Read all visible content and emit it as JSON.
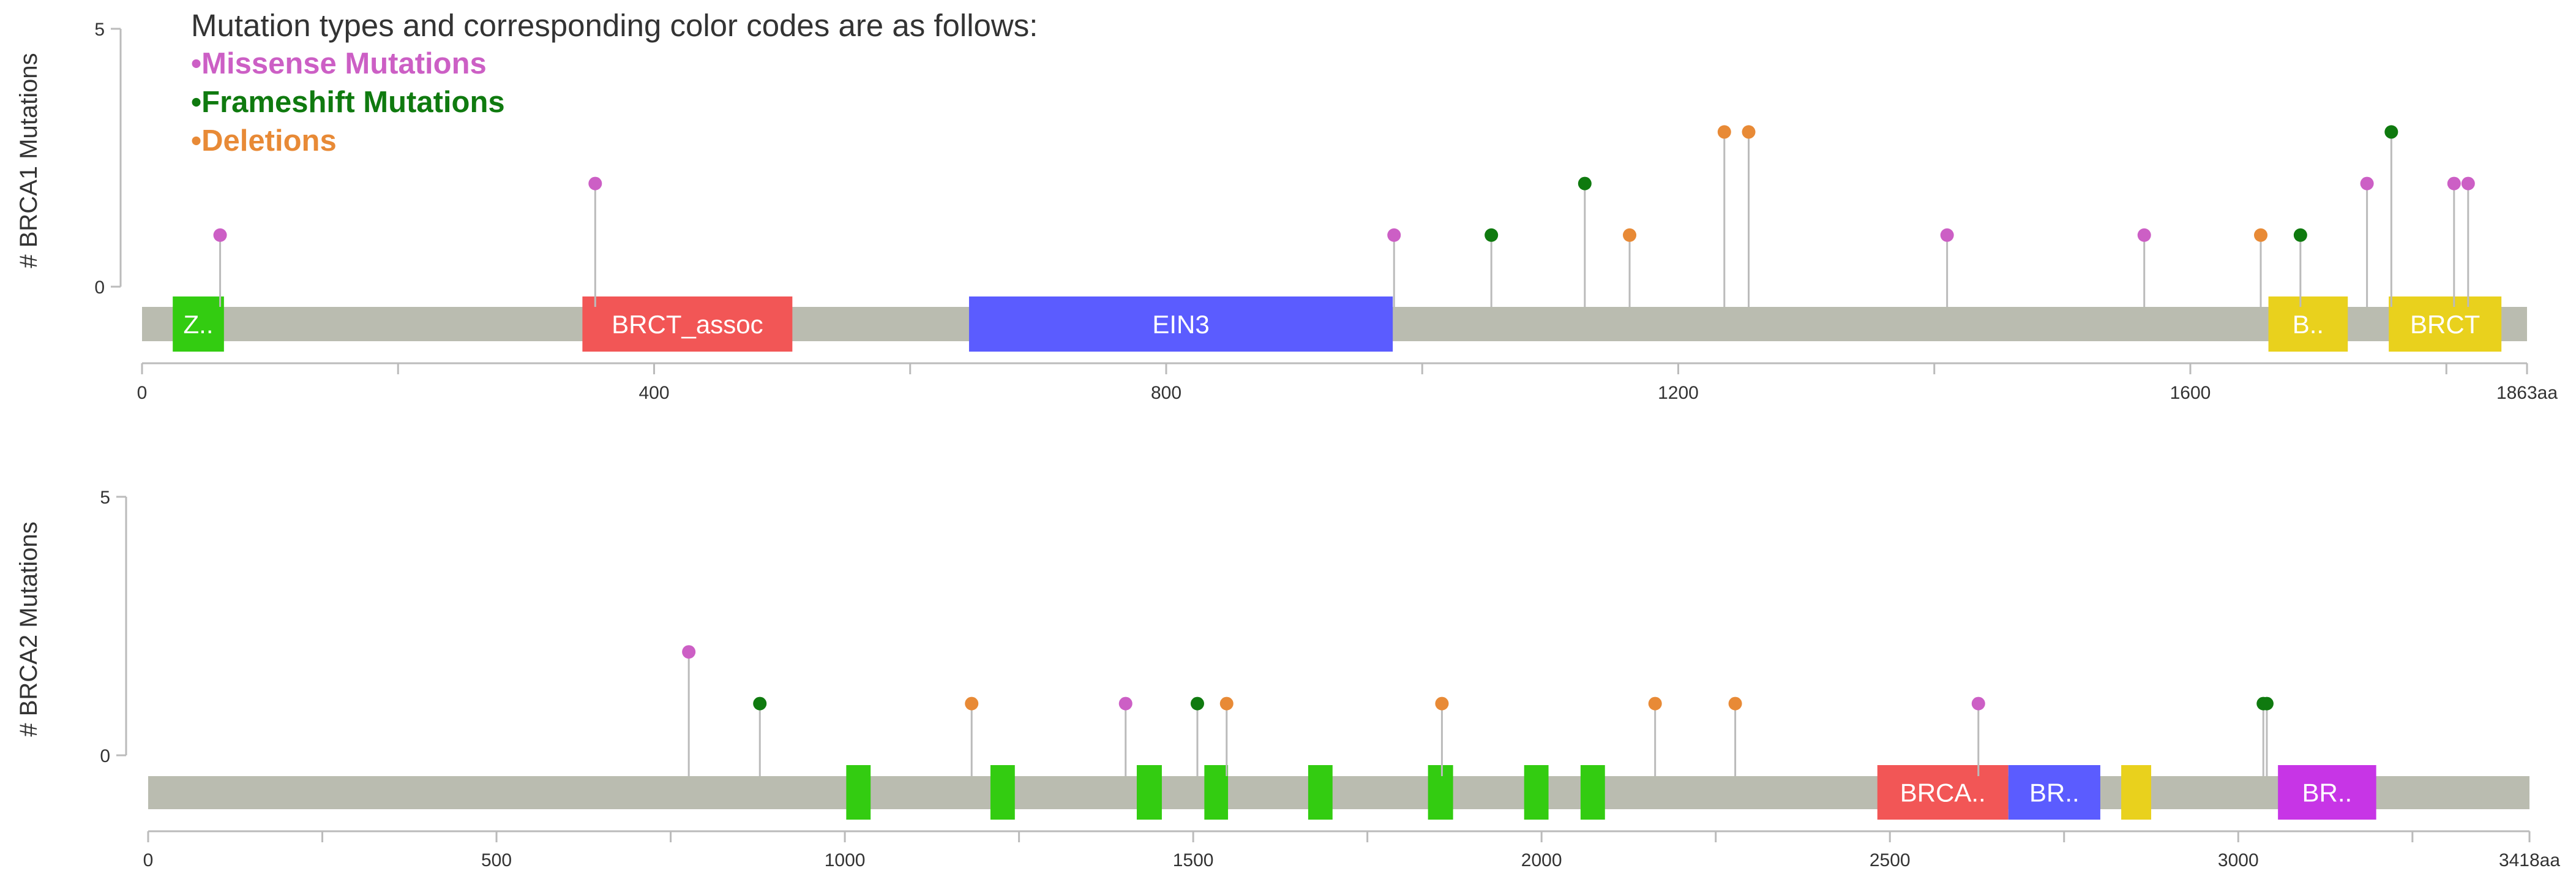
{
  "legend": {
    "title": "Mutation types and corresponding color codes are as follows:",
    "items": [
      {
        "label": "•Missense Mutations",
        "color": "#cc5fc5"
      },
      {
        "label": "•Frameshift Mutations",
        "color": "#0f7a0f"
      },
      {
        "label": "•Deletions",
        "color": "#e88a36"
      }
    ]
  },
  "colors": {
    "backbone": "#babcb0",
    "axis": "#bbbbbb",
    "stem": "#bbbbbb",
    "missense": "#cc5fc5",
    "frameshift": "#0f7a0f",
    "deletion": "#e88a36"
  },
  "chart_data": [
    {
      "type": "lollipop",
      "ylabel": "# BRCA1 Mutations",
      "ylim": [
        0,
        5
      ],
      "yticks": [
        "0",
        "5"
      ],
      "xlim": [
        0,
        1863
      ],
      "xticks": [
        {
          "value": 0,
          "label": "0"
        },
        {
          "value": 200,
          "label": ""
        },
        {
          "value": 400,
          "label": "400"
        },
        {
          "value": 600,
          "label": ""
        },
        {
          "value": 800,
          "label": "800"
        },
        {
          "value": 1000,
          "label": ""
        },
        {
          "value": 1200,
          "label": "1200"
        },
        {
          "value": 1400,
          "label": ""
        },
        {
          "value": 1600,
          "label": "1600"
        },
        {
          "value": 1800,
          "label": ""
        },
        {
          "value": 1863,
          "label": "1863aa"
        }
      ],
      "domains": [
        {
          "label": "Z..",
          "start": 24,
          "end": 64,
          "color": "#33cc11"
        },
        {
          "label": "BRCT_assoc",
          "start": 344,
          "end": 508,
          "color": "#f25656"
        },
        {
          "label": "EIN3",
          "start": 646,
          "end": 977,
          "color": "#5b5cff"
        },
        {
          "label": "B..",
          "start": 1661,
          "end": 1723,
          "color": "#e9d11d"
        },
        {
          "label": "BRCT",
          "start": 1755,
          "end": 1843,
          "color": "#e9d11d"
        }
      ],
      "mutations": [
        {
          "position": 61,
          "count": 1,
          "type": "missense"
        },
        {
          "position": 354,
          "count": 2,
          "type": "missense"
        },
        {
          "position": 978,
          "count": 1,
          "type": "missense"
        },
        {
          "position": 1054,
          "count": 1,
          "type": "frameshift"
        },
        {
          "position": 1127,
          "count": 2,
          "type": "frameshift"
        },
        {
          "position": 1162,
          "count": 1,
          "type": "deletion"
        },
        {
          "position": 1236,
          "count": 3,
          "type": "deletion"
        },
        {
          "position": 1255,
          "count": 3,
          "type": "deletion"
        },
        {
          "position": 1410,
          "count": 1,
          "type": "missense"
        },
        {
          "position": 1564,
          "count": 1,
          "type": "missense"
        },
        {
          "position": 1655,
          "count": 1,
          "type": "deletion"
        },
        {
          "position": 1686,
          "count": 1,
          "type": "frameshift"
        },
        {
          "position": 1738,
          "count": 2,
          "type": "missense"
        },
        {
          "position": 1757,
          "count": 3,
          "type": "frameshift"
        },
        {
          "position": 1806,
          "count": 2,
          "type": "missense"
        },
        {
          "position": 1817,
          "count": 2,
          "type": "missense"
        }
      ]
    },
    {
      "type": "lollipop",
      "ylabel": "# BRCA2 Mutations",
      "ylim": [
        0,
        5
      ],
      "yticks": [
        "0",
        "5"
      ],
      "xlim": [
        0,
        3418
      ],
      "xticks": [
        {
          "value": 0,
          "label": "0"
        },
        {
          "value": 250,
          "label": ""
        },
        {
          "value": 500,
          "label": "500"
        },
        {
          "value": 750,
          "label": ""
        },
        {
          "value": 1000,
          "label": "1000"
        },
        {
          "value": 1250,
          "label": ""
        },
        {
          "value": 1500,
          "label": "1500"
        },
        {
          "value": 1750,
          "label": ""
        },
        {
          "value": 2000,
          "label": "2000"
        },
        {
          "value": 2250,
          "label": ""
        },
        {
          "value": 2500,
          "label": "2500"
        },
        {
          "value": 2750,
          "label": ""
        },
        {
          "value": 3000,
          "label": "3000"
        },
        {
          "value": 3250,
          "label": ""
        },
        {
          "value": 3418,
          "label": "3418aa"
        }
      ],
      "domains": [
        {
          "label": "",
          "start": 1002,
          "end": 1037,
          "color": "#33cc11"
        },
        {
          "label": "",
          "start": 1209,
          "end": 1244,
          "color": "#33cc11"
        },
        {
          "label": "",
          "start": 1419,
          "end": 1455,
          "color": "#33cc11"
        },
        {
          "label": "",
          "start": 1516,
          "end": 1550,
          "color": "#33cc11"
        },
        {
          "label": "",
          "start": 1665,
          "end": 1700,
          "color": "#33cc11"
        },
        {
          "label": "",
          "start": 1837,
          "end": 1873,
          "color": "#33cc11"
        },
        {
          "label": "",
          "start": 1975,
          "end": 2010,
          "color": "#33cc11"
        },
        {
          "label": "",
          "start": 2056,
          "end": 2091,
          "color": "#33cc11"
        },
        {
          "label": "BRCA..",
          "start": 2482,
          "end": 2670,
          "color": "#f25656"
        },
        {
          "label": "BR..",
          "start": 2670,
          "end": 2802,
          "color": "#5b5cff"
        },
        {
          "label": "",
          "start": 2832,
          "end": 2875,
          "color": "#e9d11d"
        },
        {
          "label": "BR..",
          "start": 3057,
          "end": 3198,
          "color": "#c735e6"
        }
      ],
      "mutations": [
        {
          "position": 776,
          "count": 2,
          "type": "missense"
        },
        {
          "position": 878,
          "count": 1,
          "type": "frameshift"
        },
        {
          "position": 1182,
          "count": 1,
          "type": "deletion"
        },
        {
          "position": 1403,
          "count": 1,
          "type": "missense"
        },
        {
          "position": 1506,
          "count": 1,
          "type": "frameshift"
        },
        {
          "position": 1548,
          "count": 1,
          "type": "deletion"
        },
        {
          "position": 1857,
          "count": 1,
          "type": "deletion"
        },
        {
          "position": 2163,
          "count": 1,
          "type": "deletion"
        },
        {
          "position": 2278,
          "count": 1,
          "type": "deletion"
        },
        {
          "position": 2627,
          "count": 1,
          "type": "missense"
        },
        {
          "position": 3036,
          "count": 1,
          "type": "frameshift"
        },
        {
          "position": 3041,
          "count": 1,
          "type": "frameshift"
        }
      ]
    }
  ]
}
